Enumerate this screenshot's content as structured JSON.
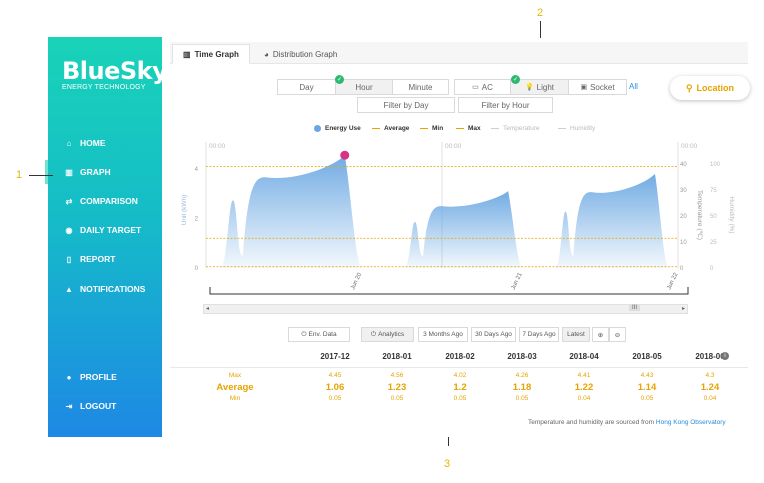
{
  "sidebar": {
    "logo": {
      "brand": "BlueSky",
      "tagline": "ENERGY TECHNOLOGY"
    },
    "items": [
      {
        "label": "HOME",
        "icon": "home-icon"
      },
      {
        "label": "GRAPH",
        "icon": "bar-chart-icon"
      },
      {
        "label": "COMPARISON",
        "icon": "swap-icon"
      },
      {
        "label": "DAILY TARGET",
        "icon": "target-icon"
      },
      {
        "label": "REPORT",
        "icon": "document-icon"
      },
      {
        "label": "NOTIFICATIONS",
        "icon": "bell-icon"
      },
      {
        "label": "PROFILE",
        "icon": "user-icon"
      },
      {
        "label": "LOGOUT",
        "icon": "logout-icon"
      }
    ]
  },
  "annotations": [
    "1",
    "2",
    "3"
  ],
  "tabs": [
    {
      "label": "Time Graph",
      "icon": "bar-chart-icon"
    },
    {
      "label": "Distribution Graph",
      "icon": "pie-chart-icon"
    }
  ],
  "period_buttons": [
    "Day",
    "Hour",
    "Minute"
  ],
  "device_buttons": [
    "AC",
    "Light",
    "Socket"
  ],
  "all_label": "All",
  "filter_buttons": [
    "Filter by Day",
    "Filter by Hour"
  ],
  "location_label": "Location",
  "legend": [
    "Energy Use",
    "Average",
    "Min",
    "Max",
    "Temperature",
    "Humidity"
  ],
  "chart_data": {
    "type": "area",
    "left_axis": {
      "label": "Unit (kWh)",
      "ticks": [
        "0",
        "2",
        "4"
      ]
    },
    "mid_axis": {
      "label": "Temperature (℃)",
      "ticks": [
        "0",
        "10",
        "20",
        "30",
        "40"
      ]
    },
    "right_axis": {
      "label": "Humidity (%)",
      "ticks": [
        "0",
        "25",
        "50",
        "75",
        "100"
      ]
    },
    "x_ticks": [
      "Jun 20",
      "Jun 21",
      "Jun 22"
    ],
    "top_labels": [
      "00:00",
      "00:00",
      "00:00"
    ],
    "ylim": [
      0,
      4.6
    ],
    "reference_lines": {
      "max": 4.1,
      "average": 1.2,
      "min": 0.05
    },
    "max_point": {
      "value": 4.55
    },
    "series": [
      {
        "x": [
          0.0,
          0.06,
          0.1,
          0.12,
          0.15,
          0.19,
          0.3,
          0.4,
          0.47,
          0.48,
          0.55,
          0.56,
          0.6,
          0.7,
          0.75,
          0.79,
          0.83,
          0.85,
          0.88,
          0.96,
          1.0
        ],
        "y": [
          0,
          2.6,
          1.4,
          3.4,
          3.6,
          3.6,
          3.8,
          4.3,
          3.4,
          0,
          0,
          0,
          2.5,
          3.0,
          3.1,
          3.1,
          2.0,
          0,
          0,
          0,
          0
        ]
      }
    ],
    "daily_shapes": [
      {
        "start": 0.03,
        "end": 0.33,
        "peak": 4.55
      },
      {
        "start": 0.42,
        "end": 0.67,
        "peak": 3.1
      },
      {
        "start": 0.74,
        "end": 0.98,
        "peak": 3.8
      }
    ]
  },
  "scroll_handle": "III",
  "controls": [
    "Env. Data",
    "Analytics",
    "3 Months Ago",
    "30 Days Ago",
    "7 Days Ago",
    "Latest"
  ],
  "table": {
    "columns": [
      "2017-12",
      "2018-01",
      "2018-02",
      "2018-03",
      "2018-04",
      "2018-05",
      "2018-06"
    ],
    "row_labels": [
      "Max",
      "Average",
      "Min"
    ],
    "max": [
      "4.45",
      "4.56",
      "4.02",
      "4.26",
      "4.41",
      "4.43",
      "4.3"
    ],
    "average": [
      "1.06",
      "1.23",
      "1.2",
      "1.18",
      "1.22",
      "1.14",
      "1.24"
    ],
    "min": [
      "0.05",
      "0.05",
      "0.05",
      "0.05",
      "0.04",
      "0.05",
      "0.04"
    ]
  },
  "source_note": {
    "text": "Temperature and humidity are sourced from",
    "link": "Hong Kong Observatory"
  },
  "colors": {
    "accent": "#e5a400",
    "brand_top": "#19d3b8",
    "brand_bottom": "#1e88e5",
    "area": "#6aa7e2",
    "max_point": "#d63384",
    "check": "#2eb872"
  }
}
